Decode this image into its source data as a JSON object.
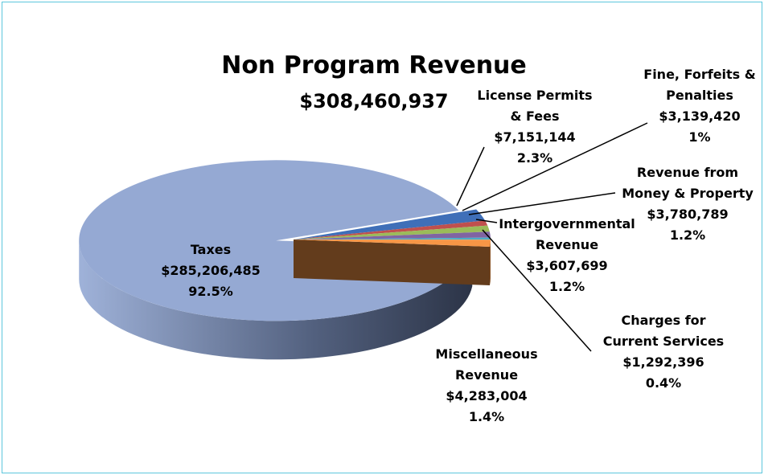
{
  "chart_data": {
    "type": "pie",
    "title": "Non Program Revenue",
    "subtitle": "$308,460,937",
    "categories": [
      "Taxes",
      "License Permits & Fees",
      "Fine, Forfeits & Penalties",
      "Revenue from Money & Property",
      "Intergovernmental Revenue",
      "Charges for Current Services",
      "Miscellaneous Revenue"
    ],
    "values": [
      285206485,
      7151144,
      3139420,
      3780789,
      3607699,
      1292396,
      4283004
    ],
    "value_labels": [
      "$285,206,485",
      "$7,151,144",
      "$3,139,420",
      "$3,780,789",
      "$3,607,699",
      "$1,292,396",
      "$4,283,004"
    ],
    "percent_labels": [
      "92.5%",
      "2.3%",
      "1%",
      "1.2%",
      "1.2%",
      "0.4%",
      "1.4%"
    ],
    "colors": [
      "#95a9d3",
      "#3f6fb8",
      "#c0504d",
      "#9bbb59",
      "#8064a2",
      "#4bacc6",
      "#f79646"
    ]
  }
}
